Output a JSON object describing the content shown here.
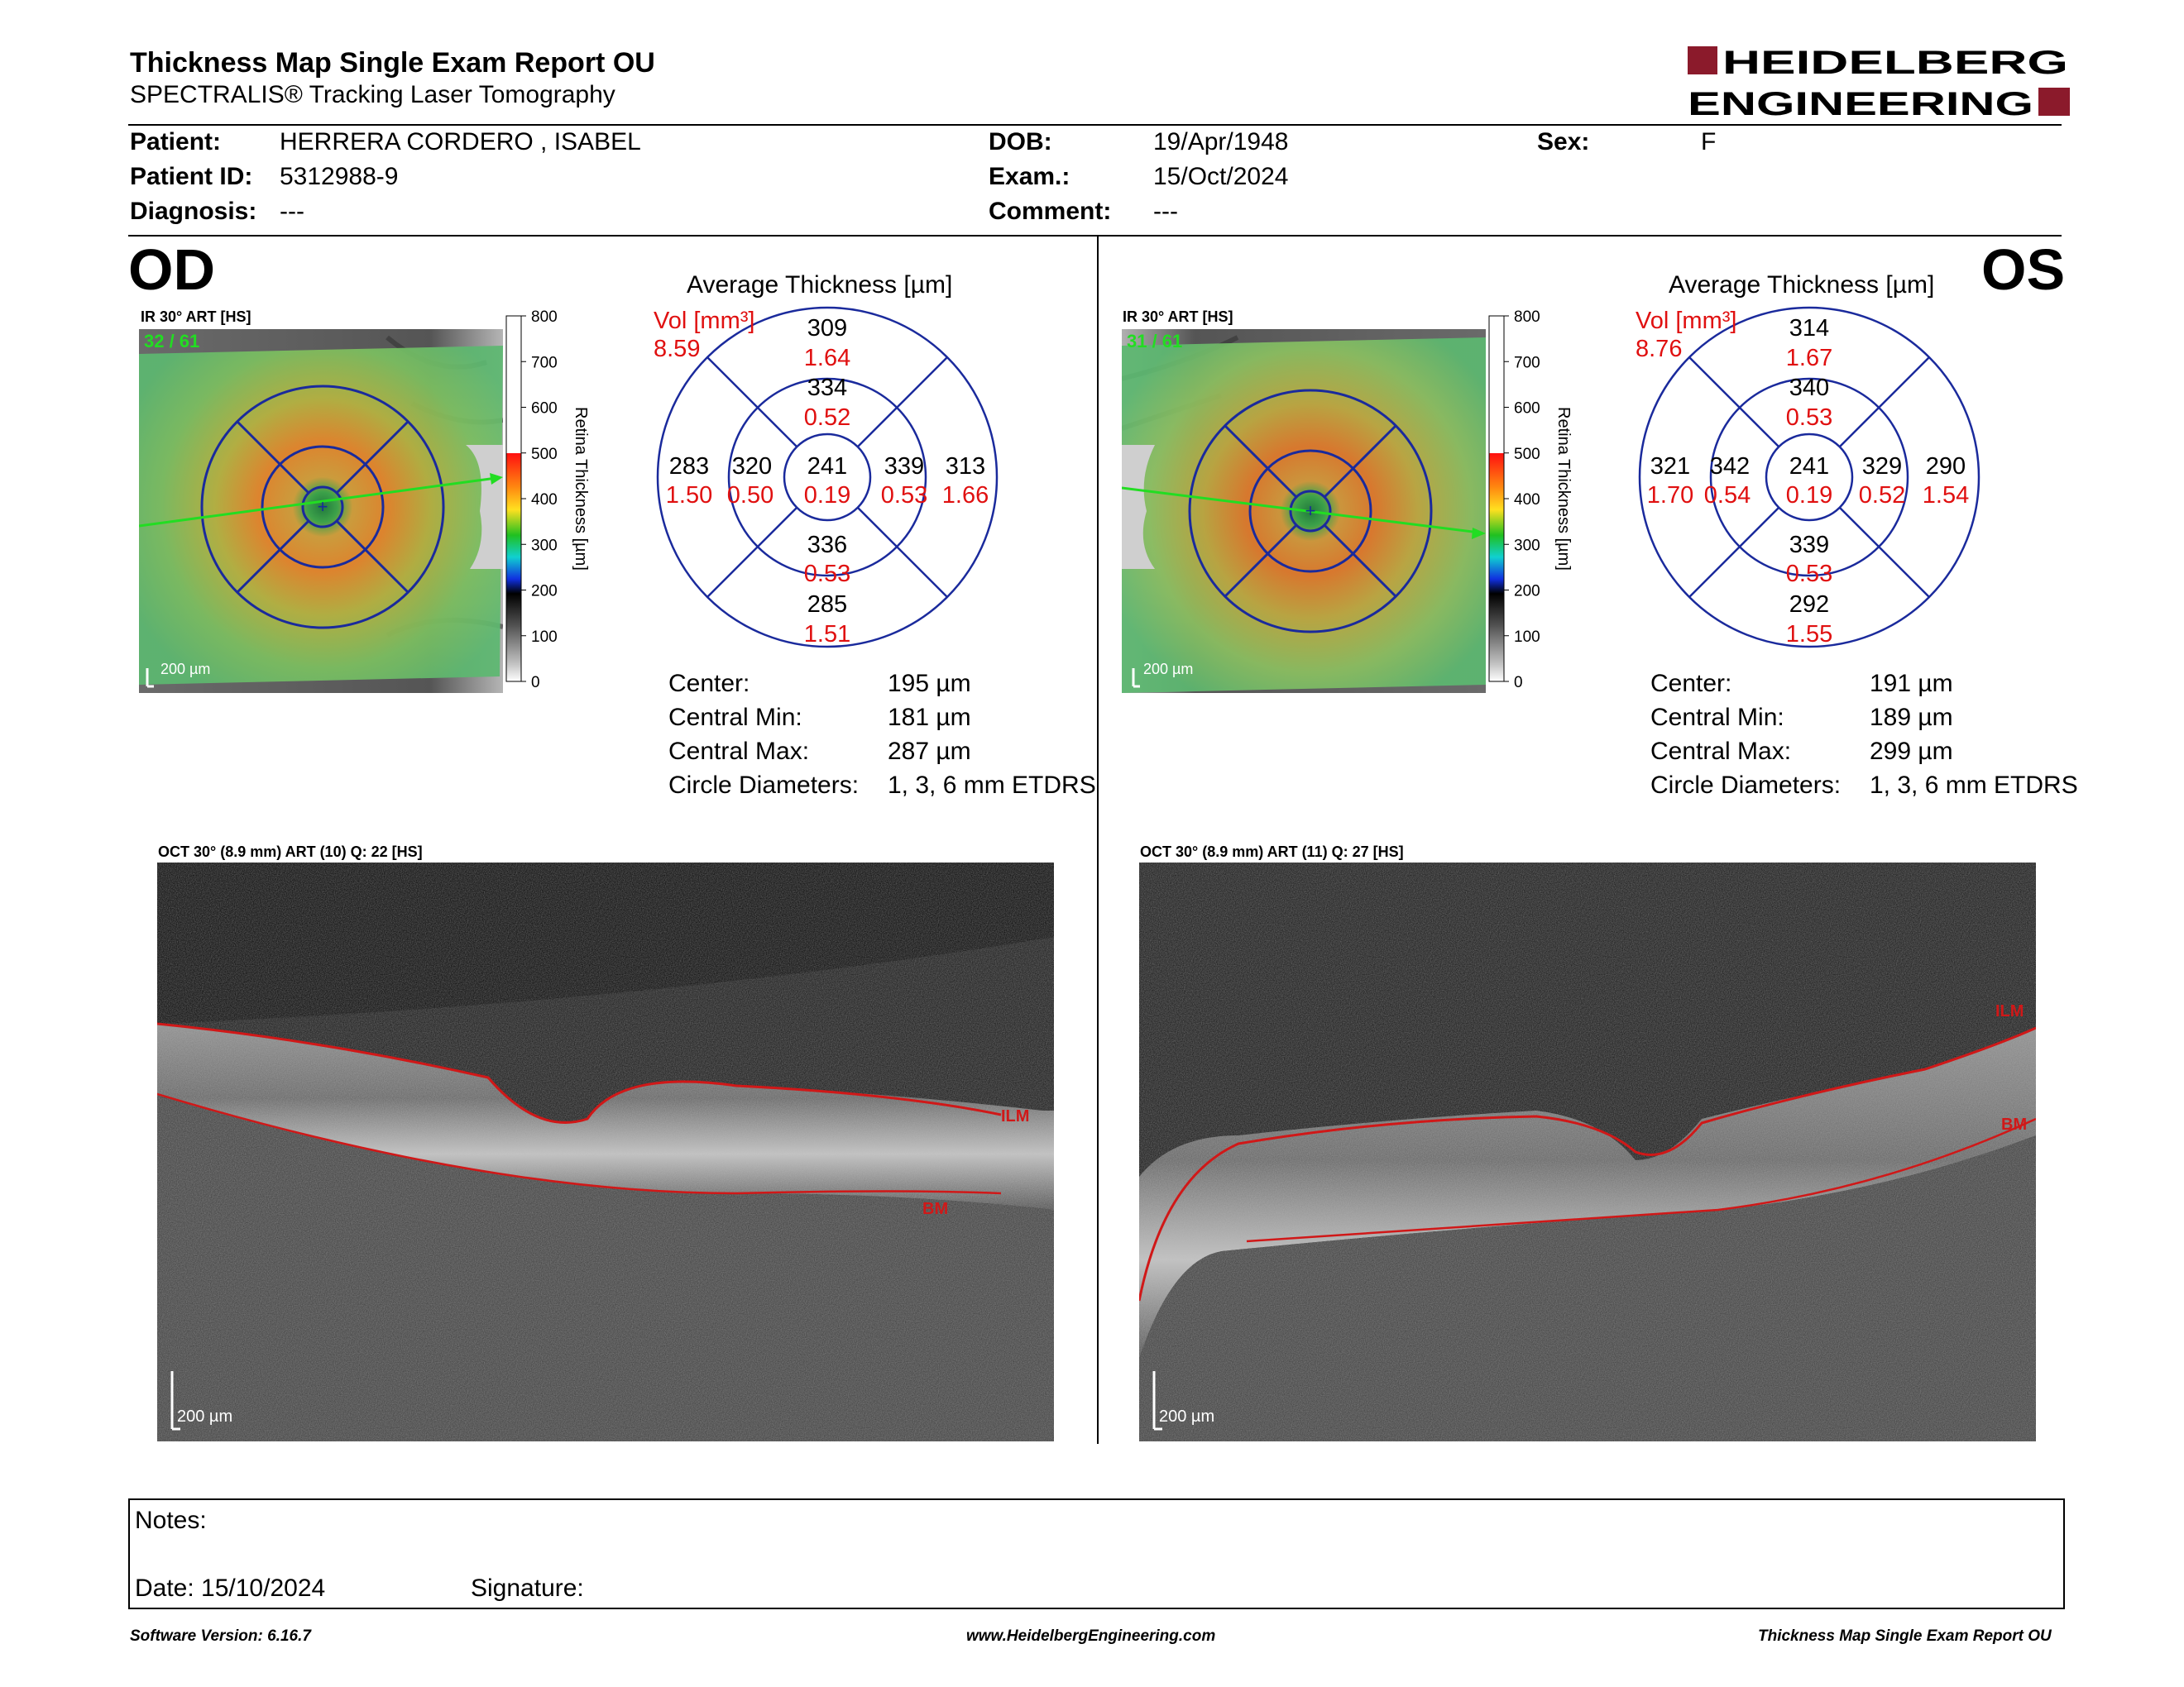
{
  "header": {
    "title": "Thickness Map Single Exam Report OU",
    "subtitle": "SPECTRALIS® Tracking Laser Tomography",
    "logo_line1": "HEIDELBERG",
    "logo_line2": "ENGINEERING",
    "brand_color": "#8b1a2b"
  },
  "patient": {
    "patient_label": "Patient:",
    "patient_value": "HERRERA CORDERO , ISABEL",
    "id_label": "Patient ID:",
    "id_value": "5312988-9",
    "diagnosis_label": "Diagnosis:",
    "diagnosis_value": "---",
    "dob_label": "DOB:",
    "dob_value": "19/Apr/1948",
    "exam_label": "Exam.:",
    "exam_value": "15/Oct/2024",
    "comment_label": "Comment:",
    "comment_value": "---",
    "sex_label": "Sex:",
    "sex_value": "F"
  },
  "od": {
    "eye": "OD",
    "ir_label": "IR 30° ART [HS]",
    "ir_frames": "32 / 61",
    "scale_label": "200 µm",
    "colorbar_ticks": [
      "800",
      "700",
      "600",
      "500",
      "400",
      "300",
      "200",
      "100",
      "0"
    ],
    "colorbar_title": "Retina Thickness [µm]",
    "avg_title": "Average Thickness [µm]",
    "vol_label": "Vol [mm³]",
    "vol_value": "8.59",
    "etdrs": {
      "center": {
        "t": "241",
        "v": "0.19"
      },
      "inner_sup": {
        "t": "334",
        "v": "0.52"
      },
      "inner_inf": {
        "t": "336",
        "v": "0.53"
      },
      "inner_left": {
        "t": "320",
        "v": "0.50"
      },
      "inner_right": {
        "t": "339",
        "v": "0.53"
      },
      "outer_sup": {
        "t": "309",
        "v": "1.64"
      },
      "outer_inf": {
        "t": "285",
        "v": "1.51"
      },
      "outer_left": {
        "t": "283",
        "v": "1.50"
      },
      "outer_right": {
        "t": "313",
        "v": "1.66"
      }
    },
    "stats": [
      {
        "label": "Center:",
        "value": "195 µm"
      },
      {
        "label": "Central Min:",
        "value": "181 µm"
      },
      {
        "label": "Central Max:",
        "value": "287 µm"
      },
      {
        "label": "Circle Diameters:",
        "value": "1, 3, 6 mm ETDRS"
      }
    ],
    "oct_label": "OCT 30° (8.9 mm) ART (10) Q: 22 [HS]",
    "ilm": "ILM",
    "bm": "BM",
    "oct_scale": "200 µm"
  },
  "os": {
    "eye": "OS",
    "ir_label": "IR 30° ART [HS]",
    "ir_frames": "31 / 61",
    "scale_label": "200 µm",
    "colorbar_ticks": [
      "800",
      "700",
      "600",
      "500",
      "400",
      "300",
      "200",
      "100",
      "0"
    ],
    "colorbar_title": "Retina Thickness [µm]",
    "avg_title": "Average Thickness [µm]",
    "vol_label": "Vol [mm³]",
    "vol_value": "8.76",
    "etdrs": {
      "center": {
        "t": "241",
        "v": "0.19"
      },
      "inner_sup": {
        "t": "340",
        "v": "0.53"
      },
      "inner_inf": {
        "t": "339",
        "v": "0.53"
      },
      "inner_left": {
        "t": "342",
        "v": "0.54"
      },
      "inner_right": {
        "t": "329",
        "v": "0.52"
      },
      "outer_sup": {
        "t": "314",
        "v": "1.67"
      },
      "outer_inf": {
        "t": "292",
        "v": "1.55"
      },
      "outer_left": {
        "t": "321",
        "v": "1.70"
      },
      "outer_right": {
        "t": "290",
        "v": "1.54"
      }
    },
    "stats": [
      {
        "label": "Center:",
        "value": "191 µm"
      },
      {
        "label": "Central Min:",
        "value": "189 µm"
      },
      {
        "label": "Central Max:",
        "value": "299 µm"
      },
      {
        "label": "Circle Diameters:",
        "value": "1, 3, 6 mm ETDRS"
      }
    ],
    "oct_label": "OCT 30° (8.9 mm) ART (11) Q: 27 [HS]",
    "ilm": "ILM",
    "bm": "BM",
    "oct_scale": "200 µm"
  },
  "notes": {
    "notes_label": "Notes:",
    "date_label": "Date: 15/10/2024",
    "signature_label": "Signature:"
  },
  "footer": {
    "software": "Software Version: 6.16.7",
    "website": "www.HeidelbergEngineering.com",
    "report": "Thickness Map Single Exam Report OU"
  },
  "colors": {
    "etdrs_grid": "#1a2a9c",
    "volume_red": "#e01010",
    "layer_red": "#d01818",
    "scan_line": "#22dd22"
  }
}
